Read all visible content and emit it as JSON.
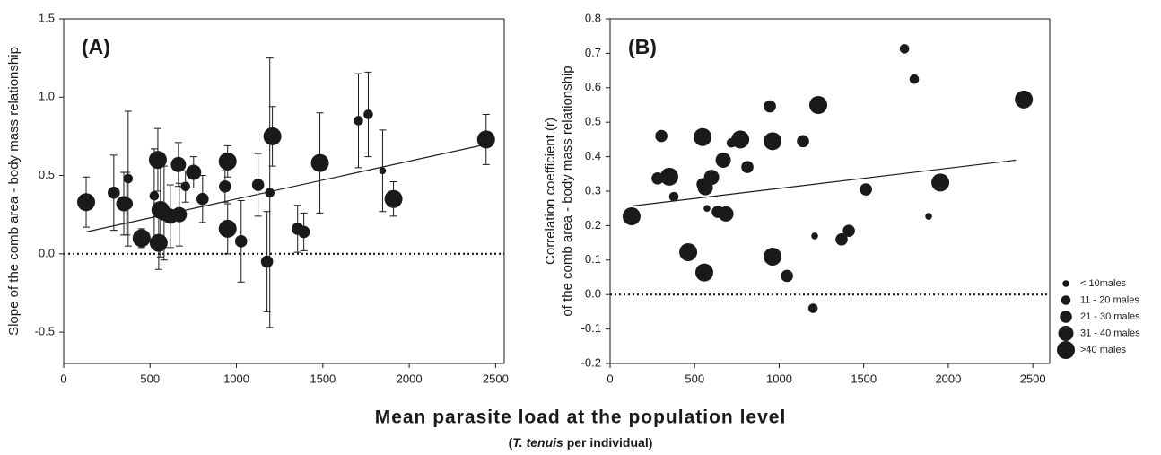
{
  "chart_data": [
    {
      "type": "scatter",
      "panel_label": "(A)",
      "ylabel": "Slope of the comb area - body mass relationship",
      "xlim": [
        0,
        2550
      ],
      "ylim": [
        -0.7,
        1.5
      ],
      "xticks": [
        0,
        500,
        1000,
        1500,
        2000,
        2500
      ],
      "yticks": [
        {
          "value": -0.5,
          "label": "-0.5"
        },
        {
          "value": 0,
          "label": "0.0"
        },
        0.5,
        {
          "value": 1,
          "label": "1.0"
        },
        1.5
      ],
      "hline": 0,
      "trend": {
        "x": [
          130,
          2450
        ],
        "y": [
          0.14,
          0.7
        ]
      },
      "color": "#1a1a1a",
      "series": [
        {
          "x": [
            1846
          ],
          "values": [
            0.53
          ],
          "errors": [
            0.26
          ]
        },
        {
          "x": [
            373,
            524,
            705,
            1193,
            1706,
            1763
          ],
          "values": [
            0.48,
            0.37,
            0.43,
            0.39,
            0.85,
            0.89
          ],
          "errors": [
            0.43,
            0.3,
            0.1,
            0.86,
            0.3,
            0.27
          ]
        },
        {
          "x": [
            290,
            365,
            804,
            934,
            1027,
            1125,
            1177,
            1354,
            1390
          ],
          "values": [
            0.39,
            0.32,
            0.35,
            0.43,
            0.08,
            0.44,
            -0.05,
            0.16,
            0.14
          ],
          "errors": [
            0.24,
            0.2,
            0.15,
            0.1,
            0.26,
            0.2,
            0.32,
            0.15,
            0.12
          ]
        },
        {
          "x": [
            348,
            581,
            617,
            664,
            669,
            752
          ],
          "values": [
            0.32,
            0.26,
            0.24,
            0.57,
            0.25,
            0.52
          ],
          "errors": [
            0.2,
            0.3,
            0.2,
            0.14,
            0.2,
            0.1
          ]
        },
        {
          "x": [
            130,
            451,
            545,
            550,
            560,
            949,
            949,
            1208,
            1483,
            1909,
            2445
          ],
          "values": [
            0.33,
            0.1,
            0.6,
            0.07,
            0.28,
            0.59,
            0.16,
            0.75,
            0.58,
            0.35,
            0.73
          ],
          "errors": [
            0.16,
            0.06,
            0.2,
            0.17,
            0.3,
            0.1,
            0.16,
            0.19,
            0.32,
            0.11,
            0.16
          ]
        }
      ]
    },
    {
      "type": "scatter",
      "panel_label": "(B)",
      "ylabel": [
        "Correlation coefficient (r)",
        "of the comb area - body mass relationship"
      ],
      "xlim": [
        0,
        2600
      ],
      "ylim": [
        -0.2,
        0.8
      ],
      "xticks": [
        0,
        500,
        1000,
        1500,
        2000,
        2500
      ],
      "yticks": [
        -0.2,
        -0.1,
        {
          "value": 0,
          "label": "0.0"
        },
        0.1,
        0.2,
        0.3,
        0.4,
        0.5,
        0.6,
        0.7,
        0.8
      ],
      "hline": 0,
      "trend": {
        "x": [
          130,
          2400
        ],
        "y": [
          0.257,
          0.39
        ]
      },
      "color": "#1a1a1a",
      "legend": "right",
      "series": [
        {
          "name": "< 10males",
          "x": [
            573,
            1210,
            1884
          ],
          "values": [
            0.25,
            0.17,
            0.227
          ]
        },
        {
          "name": "11 - 20 males",
          "x": [
            377,
            717,
            1200,
            1741,
            1799
          ],
          "values": [
            0.284,
            0.44,
            -0.04,
            0.713,
            0.625
          ]
        },
        {
          "name": "21 - 30 males",
          "x": [
            281,
            303,
            547,
            637,
            812,
            945,
            1046,
            1141,
            1369,
            1412,
            1513
          ],
          "values": [
            0.337,
            0.46,
            0.32,
            0.24,
            0.37,
            0.546,
            0.054,
            0.445,
            0.16,
            0.185,
            0.305
          ]
        },
        {
          "name": "31 - 40 males",
          "x": [
            563,
            600,
            669,
            685
          ],
          "values": [
            0.31,
            0.34,
            0.39,
            0.234
          ]
        },
        {
          "name": ">40 males",
          "x": [
            127,
            350,
            462,
            547,
            557,
            770,
            961,
            961,
            1231,
            1953,
            2447
          ],
          "values": [
            0.227,
            0.342,
            0.123,
            0.457,
            0.064,
            0.45,
            0.445,
            0.11,
            0.55,
            0.325,
            0.566
          ]
        }
      ]
    }
  ],
  "xlabel": "Mean parasite load at the population level",
  "xlabel_sub": [
    "(",
    "T. tenuis",
    " per individual)"
  ]
}
